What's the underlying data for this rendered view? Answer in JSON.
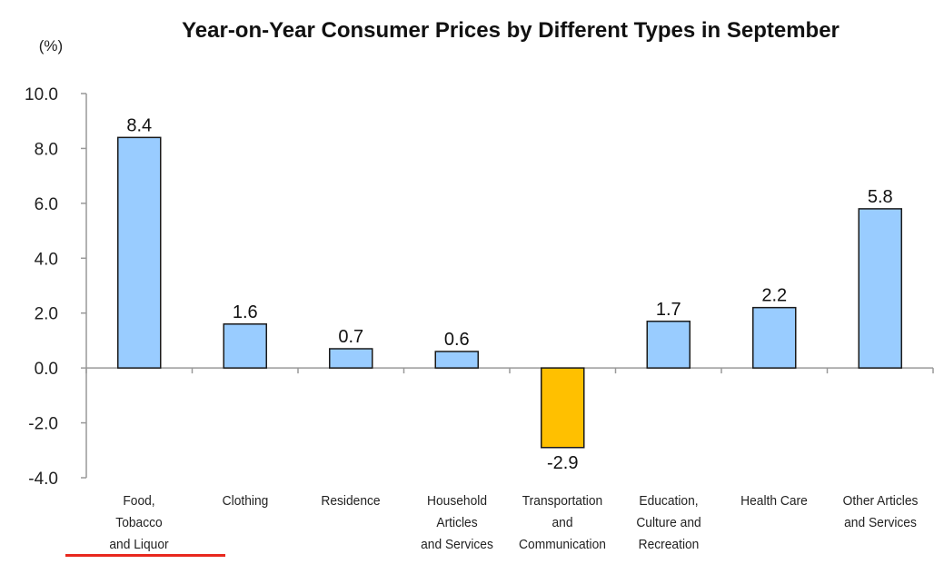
{
  "chart_data": {
    "type": "bar",
    "title": "Year-on-Year Consumer Prices by Different Types in September",
    "ylabel": "(%)",
    "xlabel": "",
    "ylim": [
      -4.0,
      10.0
    ],
    "yticks": [
      "10.0",
      "8.0",
      "6.0",
      "4.0",
      "2.0",
      "0.0",
      "-2.0",
      "-4.0"
    ],
    "ytick_values": [
      10,
      8,
      6,
      4,
      2,
      0,
      -2,
      -4
    ],
    "categories": [
      "Food,\nTobacco\nand Liquor",
      "Clothing",
      "Residence",
      "Household\nArticles\nand Services",
      "Transportation\nand\nCommunication",
      "Education,\nCulture and\nRecreation",
      "Health Care",
      "Other Articles\nand Services"
    ],
    "values": [
      8.4,
      1.6,
      0.7,
      0.6,
      -2.9,
      1.7,
      2.2,
      5.8
    ],
    "value_labels": [
      "8.4",
      "1.6",
      "0.7",
      "0.6",
      "-2.9",
      "1.7",
      "2.2",
      "5.8"
    ],
    "colors": {
      "positive": "#99ccff",
      "negative": "#ffc000",
      "bar_stroke": "#1a1a1a",
      "axis": "#999999",
      "underline": "#e8281e"
    },
    "grid": false,
    "legend": "none"
  }
}
